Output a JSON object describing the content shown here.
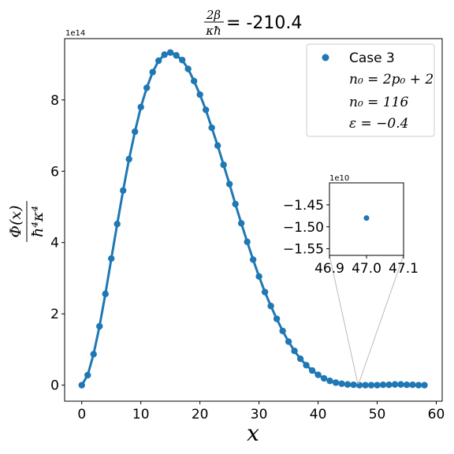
{
  "chart_data": [
    {
      "type": "line",
      "title_value": "= -210.4",
      "title_frac_num": "2β",
      "title_frac_den": "κħ",
      "xlabel": "x",
      "ylabel_num": "Φ(x)",
      "ylabel_den": "ħ⁴κ⁴",
      "offset_text": "1e14",
      "xlim": [
        -2.9,
        61
      ],
      "ylim": [
        -0.45,
        9.72
      ],
      "x_ticks": [
        0,
        10,
        20,
        30,
        40,
        50,
        60
      ],
      "y_ticks": [
        0,
        2,
        4,
        6,
        8
      ],
      "grid": false,
      "legend_position": "top-right",
      "legend": {
        "series_name": "Case 3",
        "lines": [
          "n₀ = 2p₀ + 2",
          "n₀ = 116",
          "ε = −0.4"
        ]
      },
      "series": [
        {
          "name": "Case 3",
          "color": "#1f77b4",
          "x": [
            0,
            1,
            2,
            3,
            4,
            5,
            6,
            7,
            8,
            9,
            10,
            11,
            12,
            13,
            14,
            15,
            16,
            17,
            18,
            19,
            20,
            21,
            22,
            23,
            24,
            25,
            26,
            27,
            28,
            29,
            30,
            31,
            32,
            33,
            34,
            35,
            36,
            37,
            38,
            39,
            40,
            41,
            42,
            43,
            44,
            45,
            46,
            47,
            48,
            49,
            50,
            51,
            52,
            53,
            54,
            55,
            56,
            57,
            58
          ],
          "y": [
            0,
            0.28,
            0.87,
            1.65,
            2.56,
            3.55,
            4.52,
            5.46,
            6.34,
            7.11,
            7.8,
            8.34,
            8.78,
            9.1,
            9.27,
            9.33,
            9.25,
            9.12,
            8.87,
            8.53,
            8.15,
            7.72,
            7.22,
            6.72,
            6.18,
            5.64,
            5.08,
            4.54,
            4.02,
            3.52,
            3.05,
            2.61,
            2.22,
            1.86,
            1.52,
            1.22,
            0.96,
            0.74,
            0.56,
            0.41,
            0.29,
            0.19,
            0.12,
            0.07,
            0.04,
            0.02,
            0.01,
            0.0,
            0.0,
            0.0,
            0.0,
            0.01,
            0.01,
            0.02,
            0.02,
            0.01,
            0.01,
            0.0,
            0.0
          ]
        }
      ]
    },
    {
      "type": "scatter",
      "name": "inset",
      "offset_text": "1e10",
      "xlim": [
        46.9,
        47.1
      ],
      "ylim": [
        -1.565,
        -1.4
      ],
      "x_ticks": [
        46.9,
        47.0,
        47.1
      ],
      "x_tick_labels": [
        "46.9",
        "47.0",
        "47.1"
      ],
      "y_ticks": [
        -1.45,
        -1.5,
        -1.55
      ],
      "y_tick_labels": [
        "−1.45",
        "−1.50",
        "−1.55"
      ],
      "points": [
        {
          "x": 47.0,
          "y": -1.48
        }
      ],
      "color": "#1f77b4"
    }
  ]
}
